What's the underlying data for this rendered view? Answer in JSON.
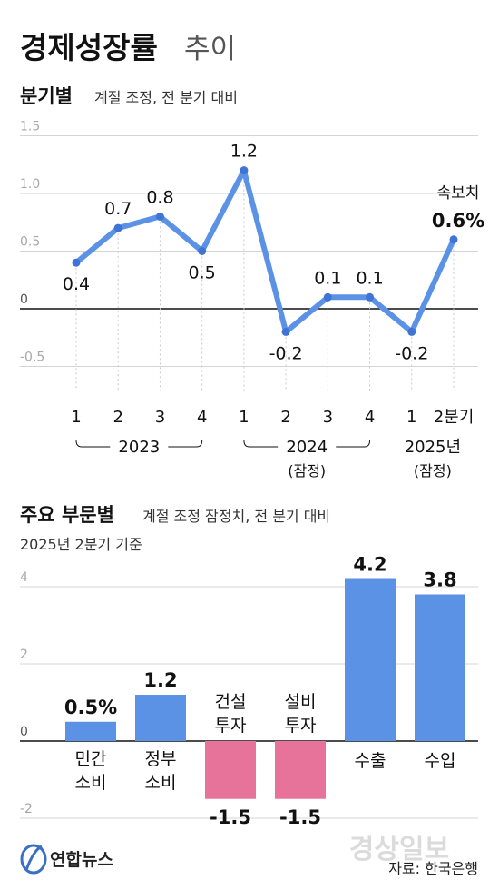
{
  "title": {
    "main": "경제성장률",
    "sub": "추이"
  },
  "quarterly": {
    "heading": "분기별",
    "note": "계절 조정, 전 분기 대비",
    "flash_label": "속보치",
    "flash_value_label": "0.6%"
  },
  "sectors": {
    "heading": "주요 부문별",
    "note": "계절 조정 잠정치, 전 분기 대비",
    "basis": "2025년 2분기 기준"
  },
  "source": "자료: 한국은행",
  "logo": {
    "name": "연합뉴스"
  },
  "watermark": "경상일보",
  "colors": {
    "line": "#5b92e5",
    "positive_bar": "#5b92e5",
    "negative_bar": "#e8739a",
    "axis": "#111111",
    "grid": "#d4d4d4",
    "tick": "#a8a8a8"
  },
  "chart_data": [
    {
      "type": "line",
      "title": "분기별",
      "subtitle": "계절 조정, 전 분기 대비",
      "x": [
        "2023 1",
        "2023 2",
        "2023 3",
        "2023 4",
        "2024 1",
        "2024 2",
        "2024 3",
        "2024 4",
        "2025 1",
        "2025 2분기"
      ],
      "tick_labels": [
        "1",
        "2",
        "3",
        "4",
        "1",
        "2",
        "3",
        "4",
        "1",
        "2분기"
      ],
      "point_labels": [
        "0.4",
        "0.7",
        "0.8",
        "0.5",
        "1.2",
        "-0.2",
        "0.1",
        "0.1",
        "-0.2",
        "0.6%"
      ],
      "groups": [
        {
          "label": "2023",
          "note": "",
          "from": 0,
          "to": 3
        },
        {
          "label": "2024",
          "note": "(잠정)",
          "from": 4,
          "to": 7
        },
        {
          "label": "2025년",
          "note": "(잠정)",
          "from": 8,
          "to": 9
        }
      ],
      "series": [
        {
          "values": [
            0.4,
            0.7,
            0.8,
            0.5,
            1.2,
            -0.2,
            0.1,
            0.1,
            -0.2,
            0.6
          ]
        }
      ],
      "yticks": [
        1.5,
        1.0,
        0.5,
        0,
        -0.5
      ],
      "ytick_labels": [
        "1.5",
        "1.0",
        "0.5",
        "0",
        "-0.5"
      ],
      "ylim": [
        -0.5,
        1.5
      ],
      "grid": true
    },
    {
      "type": "bar",
      "title": "주요 부문별",
      "subtitle": "계절 조정 잠정치, 전 분기 대비",
      "categories": [
        [
          "민간",
          "소비"
        ],
        [
          "정부",
          "소비"
        ],
        [
          "건설",
          "투자"
        ],
        [
          "설비",
          "투자"
        ],
        [
          "수출"
        ],
        [
          "수입"
        ]
      ],
      "values": [
        0.5,
        1.2,
        -1.5,
        -1.5,
        4.2,
        3.8
      ],
      "value_labels": [
        "0.5%",
        "1.2",
        "-1.5",
        "-1.5",
        "4.2",
        "3.8"
      ],
      "yticks": [
        4,
        2,
        0,
        -2
      ],
      "ytick_labels": [
        "4",
        "2",
        "0",
        "-2"
      ],
      "ylim": [
        -2,
        4
      ],
      "grid": true
    }
  ]
}
